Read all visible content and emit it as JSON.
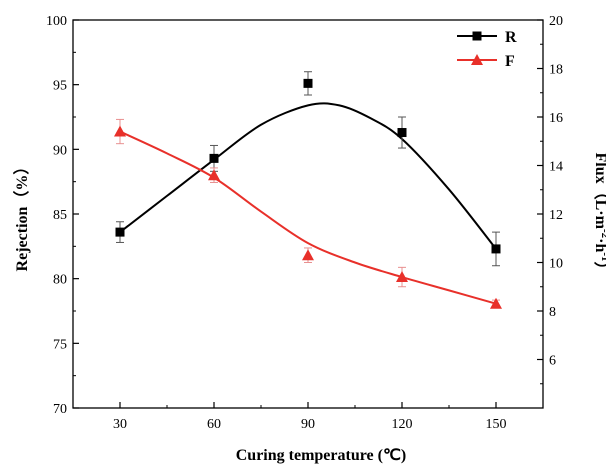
{
  "chart_data": {
    "type": "line",
    "x_categories": [
      30,
      60,
      90,
      120,
      150
    ],
    "xlabel": "Curing temperature (℃)",
    "ylabel_left": "Rejection（%）",
    "ylabel_right": {
      "prefix": "Flux（L·m",
      "sup1": "-2",
      "mid": "·h",
      "sup2": "-1",
      "suffix": "）"
    },
    "ylim_left": [
      70,
      100
    ],
    "ylim_right": [
      4,
      20
    ],
    "xlim": [
      15,
      165
    ],
    "left_ticks": [
      70,
      75,
      80,
      85,
      90,
      95,
      100
    ],
    "right_ticks": [
      6,
      8,
      10,
      12,
      14,
      16,
      18,
      20
    ],
    "x_ticks": [
      30,
      60,
      90,
      120,
      150
    ],
    "grid": false,
    "legend_position": "top-right",
    "series": [
      {
        "name": "R",
        "axis": "left",
        "color": "#000000",
        "marker": "square",
        "x": [
          30,
          60,
          90,
          120,
          150
        ],
        "y": [
          83.6,
          89.3,
          95.1,
          91.3,
          82.3
        ],
        "err": [
          0.8,
          1.0,
          0.9,
          1.2,
          1.3
        ],
        "fit": [
          [
            30,
            83.6
          ],
          [
            45,
            86.4
          ],
          [
            60,
            89.2
          ],
          [
            75,
            91.9
          ],
          [
            90,
            93.4
          ],
          [
            100,
            93.4
          ],
          [
            110,
            92.4
          ],
          [
            120,
            90.8
          ],
          [
            135,
            86.9
          ],
          [
            150,
            82.3
          ]
        ]
      },
      {
        "name": "F",
        "axis": "right",
        "color": "#e8302a",
        "marker": "triangle",
        "x": [
          30,
          60,
          90,
          120,
          150
        ],
        "y": [
          15.4,
          13.6,
          10.3,
          9.4,
          8.3
        ],
        "err": [
          0.5,
          0.3,
          0.3,
          0.4,
          0.15
        ],
        "fit": [
          [
            30,
            15.4
          ],
          [
            45,
            14.5
          ],
          [
            60,
            13.5
          ],
          [
            75,
            12.1
          ],
          [
            90,
            10.8
          ],
          [
            105,
            10.0
          ],
          [
            120,
            9.4
          ],
          [
            135,
            8.85
          ],
          [
            150,
            8.3
          ]
        ]
      }
    ]
  }
}
